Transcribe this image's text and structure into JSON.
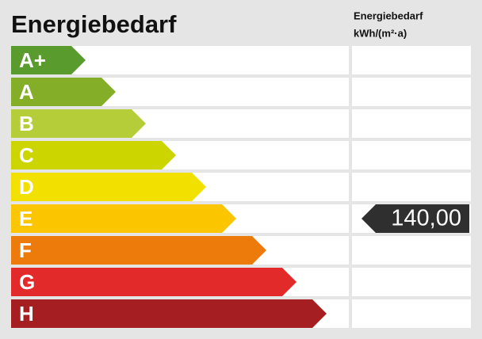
{
  "header": {
    "title": "Energiebedarf",
    "column_title": "Energiebedarf",
    "column_unit": "kWh/(m²·a)"
  },
  "classes": [
    {
      "label": "A+",
      "color": "#5a9b2e"
    },
    {
      "label": "A",
      "color": "#84ae27"
    },
    {
      "label": "B",
      "color": "#b6cd3a"
    },
    {
      "label": "C",
      "color": "#cdd500"
    },
    {
      "label": "D",
      "color": "#f2e000"
    },
    {
      "label": "E",
      "color": "#fbc600",
      "value": "140,00"
    },
    {
      "label": "F",
      "color": "#ec7b0c"
    },
    {
      "label": "G",
      "color": "#e32a2a"
    },
    {
      "label": "H",
      "color": "#a41e22"
    }
  ]
}
